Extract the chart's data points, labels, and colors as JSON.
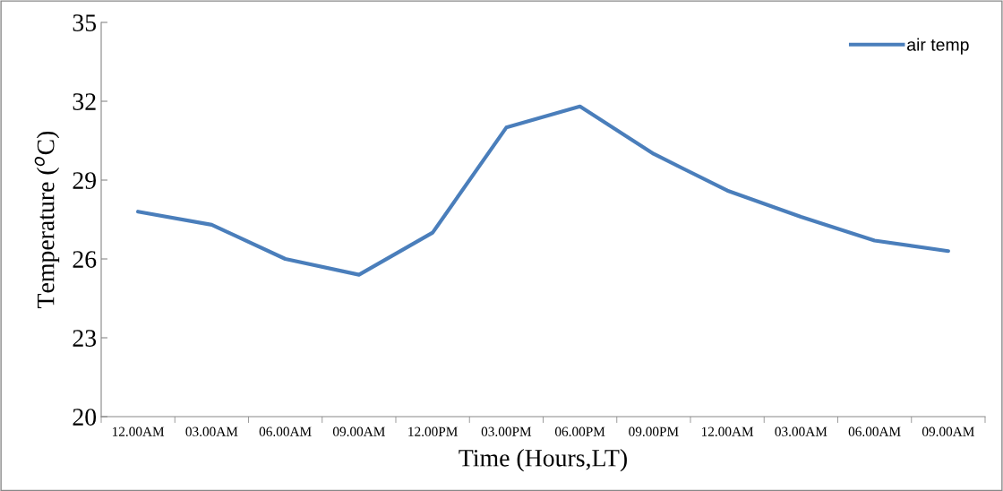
{
  "chart_data": {
    "type": "line",
    "xlabel": "Time (Hours,LT)",
    "ylabel": "Temperature ($^{o}$C)",
    "categories": [
      "12.00AM",
      "03.00AM",
      "06.00AM",
      "09.00AM",
      "12.00PM",
      "03.00PM",
      "06.00PM",
      "09.00PM",
      "12.00AM",
      "03.00AM",
      "06.00AM",
      "09.00AM"
    ],
    "series": [
      {
        "name": "air temp",
        "color": "#4a7ebb",
        "values": [
          27.8,
          27.3,
          26.0,
          25.4,
          27.0,
          31.0,
          31.8,
          30.0,
          28.6,
          27.6,
          26.7,
          26.3
        ]
      }
    ],
    "ylim": [
      20,
      35
    ],
    "yticks": [
      20,
      23,
      26,
      29,
      32,
      35
    ],
    "grid": false,
    "legend": "top right",
    "marker": "none",
    "line_style": "solid"
  }
}
